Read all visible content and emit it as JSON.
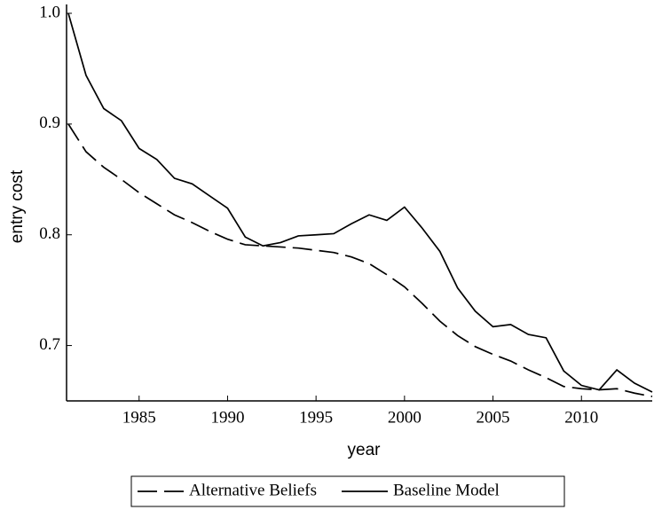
{
  "chart_data": {
    "type": "line",
    "x_label": "year",
    "y_label": "entry cost",
    "x": [
      1981,
      1982,
      1983,
      1984,
      1985,
      1986,
      1987,
      1988,
      1989,
      1990,
      1991,
      1992,
      1993,
      1994,
      1995,
      1996,
      1997,
      1998,
      1999,
      2000,
      2001,
      2002,
      2003,
      2004,
      2005,
      2006,
      2007,
      2008,
      2009,
      2010,
      2011,
      2012,
      2013,
      2014
    ],
    "series": [
      {
        "name": "Alternative Beliefs",
        "color": "#000000",
        "style": "dashed",
        "values": [
          0.9,
          0.875,
          0.861,
          0.85,
          0.838,
          0.828,
          0.818,
          0.811,
          0.803,
          0.796,
          0.791,
          0.79,
          0.789,
          0.788,
          0.786,
          0.784,
          0.78,
          0.774,
          0.764,
          0.753,
          0.738,
          0.722,
          0.709,
          0.699,
          0.692,
          0.686,
          0.678,
          0.671,
          0.663,
          0.661,
          0.66,
          0.661,
          0.657,
          0.654
        ]
      },
      {
        "name": "Baseline Model",
        "color": "#000000",
        "style": "solid",
        "values": [
          1.0,
          0.944,
          0.914,
          0.903,
          0.878,
          0.868,
          0.851,
          0.846,
          0.835,
          0.824,
          0.798,
          0.79,
          0.793,
          0.799,
          0.8,
          0.801,
          0.81,
          0.818,
          0.813,
          0.825,
          0.806,
          0.785,
          0.752,
          0.731,
          0.717,
          0.719,
          0.71,
          0.707,
          0.677,
          0.664,
          0.66,
          0.678,
          0.666,
          0.658
        ]
      }
    ],
    "xlim": [
      1981,
      2014
    ],
    "xticks": [
      1985,
      1990,
      1995,
      2000,
      2005,
      2010
    ],
    "ylim": [
      0.65,
      1.0
    ],
    "yticks": [
      {
        "value": 1,
        "label": "1.0"
      },
      0.9,
      0.8,
      0.7
    ],
    "legend": "bottom",
    "grid": false
  }
}
